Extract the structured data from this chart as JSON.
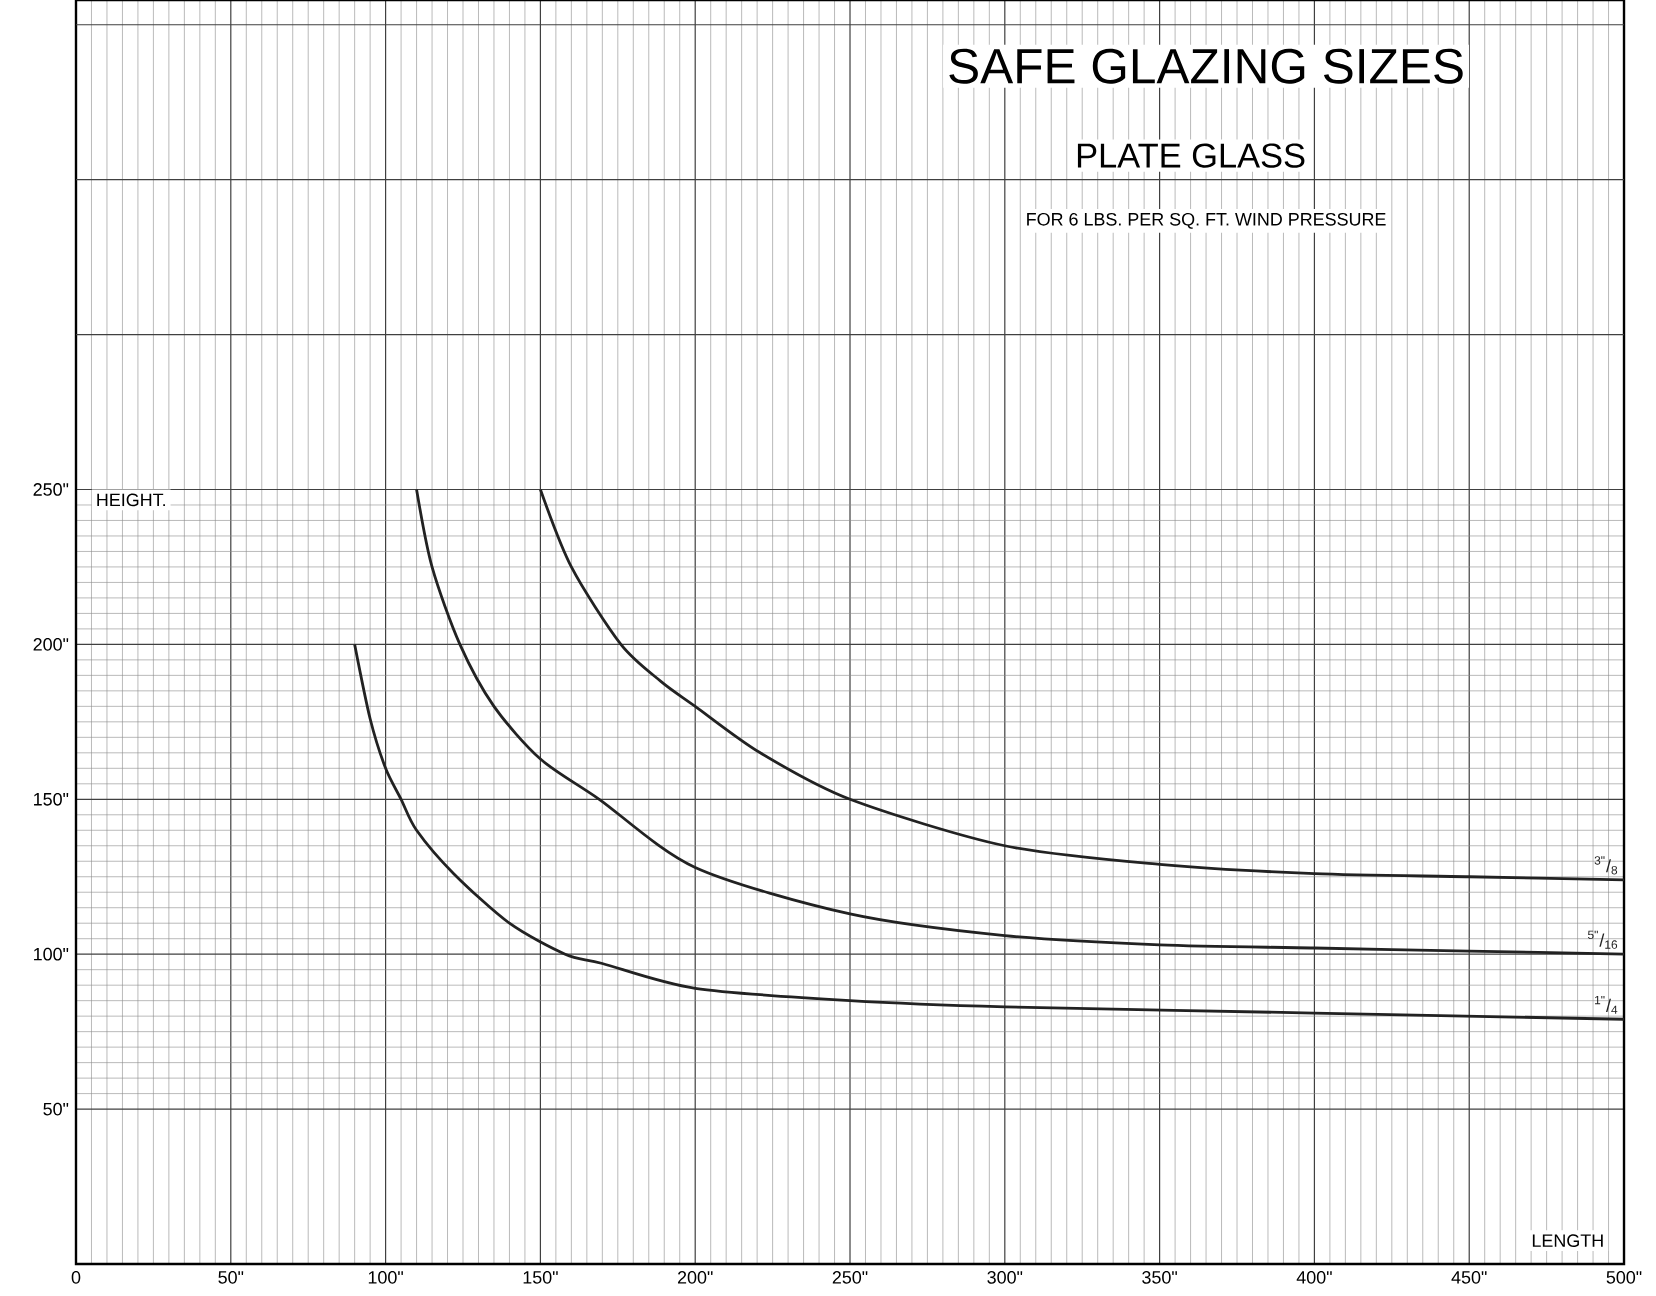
{
  "chart_data": {
    "type": "line",
    "title": "SAFE GLAZING SIZES",
    "subtitle": "PLATE GLASS",
    "annotations": [
      "FOR 6 LBS. PER SQ. FT. WIND PRESSURE"
    ],
    "xlabel": "LENGTH",
    "ylabel": "HEIGHT.",
    "xlim": [
      0,
      500
    ],
    "ylim": [
      0,
      408
    ],
    "xticks": [
      {
        "value": 0,
        "label": "0"
      },
      {
        "value": 50,
        "label": "50\""
      },
      {
        "value": 100,
        "label": "100\""
      },
      {
        "value": 150,
        "label": "150\""
      },
      {
        "value": 200,
        "label": "200\""
      },
      {
        "value": 250,
        "label": "250\""
      },
      {
        "value": 300,
        "label": "300\""
      },
      {
        "value": 350,
        "label": "350\""
      },
      {
        "value": 400,
        "label": "400\""
      },
      {
        "value": 450,
        "label": "450\""
      },
      {
        "value": 500,
        "label": "500\""
      }
    ],
    "yticks": [
      {
        "value": 50,
        "label": "50\""
      },
      {
        "value": 100,
        "label": "100\""
      },
      {
        "value": 150,
        "label": "150\""
      },
      {
        "value": 200,
        "label": "200\""
      },
      {
        "value": 250,
        "label": "250\""
      }
    ],
    "grid": true,
    "legend": false,
    "marker": "none",
    "line_style": "solid",
    "series": [
      {
        "name": "$^{1\"}$/$_{4}$",
        "color": "#222222",
        "x": [
          90,
          95,
          100,
          105,
          110,
          122,
          140,
          158,
          170,
          200,
          250,
          300,
          400,
          500
        ],
        "values": [
          200,
          176,
          160,
          150,
          140,
          126,
          110,
          100,
          97,
          89,
          85,
          83,
          81,
          79
        ]
      },
      {
        "name": "$^{5\"}$/$_{16}$",
        "color": "#222222",
        "x": [
          110,
          115,
          124,
          135,
          150,
          169,
          200,
          250,
          300,
          350,
          400,
          450,
          500
        ],
        "values": [
          250,
          225,
          200,
          180,
          163,
          150,
          128,
          113,
          106,
          103,
          102,
          101,
          100
        ]
      },
      {
        "name": "$^{3\"}$/$_{8}$",
        "color": "#222222",
        "x": [
          150,
          160,
          176,
          189,
          200,
          221,
          250,
          300,
          350,
          400,
          450,
          500
        ],
        "values": [
          250,
          225,
          200,
          188,
          180,
          165,
          150,
          135,
          129,
          126,
          125,
          124
        ]
      }
    ]
  }
}
